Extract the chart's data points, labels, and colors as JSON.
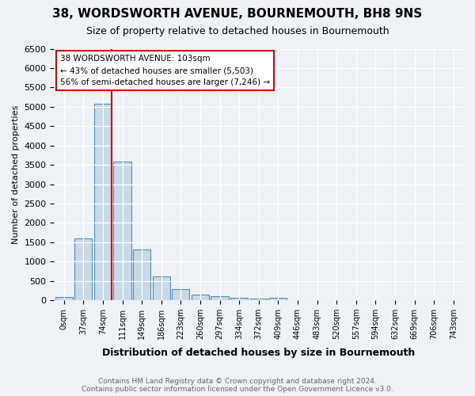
{
  "title": "38, WORDSWORTH AVENUE, BOURNEMOUTH, BH8 9NS",
  "subtitle": "Size of property relative to detached houses in Bournemouth",
  "xlabel": "Distribution of detached houses by size in Bournemouth",
  "ylabel": "Number of detached properties",
  "bar_color": "#c9d9e8",
  "bar_edge_color": "#5a8ab0",
  "bin_labels": [
    "0sqm",
    "37sqm",
    "74sqm",
    "111sqm",
    "149sqm",
    "186sqm",
    "223sqm",
    "260sqm",
    "297sqm",
    "334sqm",
    "372sqm",
    "409sqm",
    "446sqm",
    "483sqm",
    "520sqm",
    "557sqm",
    "594sqm",
    "632sqm",
    "669sqm",
    "706sqm",
    "743sqm"
  ],
  "bar_values": [
    80,
    1600,
    5080,
    3580,
    1320,
    620,
    290,
    155,
    110,
    60,
    50,
    60,
    0,
    0,
    0,
    0,
    0,
    0,
    0,
    0,
    0
  ],
  "vline_color": "#cc0000",
  "annotation_text": "38 WORDSWORTH AVENUE: 103sqm\n← 43% of detached houses are smaller (5,503)\n56% of semi-detached houses are larger (7,246) →",
  "annotation_box_color": "#cc0000",
  "ylim": [
    0,
    6500
  ],
  "yticks": [
    0,
    500,
    1000,
    1500,
    2000,
    2500,
    3000,
    3500,
    4000,
    4500,
    5000,
    5500,
    6000,
    6500
  ],
  "footer1": "Contains HM Land Registry data © Crown copyright and database right 2024.",
  "footer2": "Contains public sector information licensed under the Open Government Licence v3.0.",
  "bg_color": "#eef2f7",
  "plot_bg_color": "#eef2f7",
  "grid_color": "#ffffff"
}
